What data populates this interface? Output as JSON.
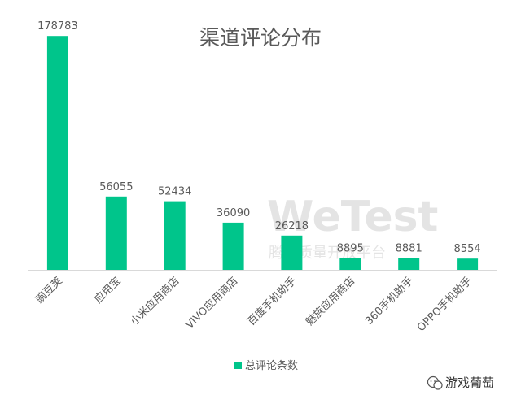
{
  "chart_data": {
    "type": "bar",
    "title": "渠道评论分布",
    "categories": [
      "豌豆荚",
      "应用宝",
      "小米应用商店",
      "VIVO应用商店",
      "百度手机助手",
      "魅族应用商店",
      "360手机助手",
      "OPPO手机助手"
    ],
    "series": [
      {
        "name": "总评论条数",
        "values": [
          178783,
          56055,
          52434,
          36090,
          26218,
          8895,
          8881,
          8554
        ]
      }
    ],
    "xlabel": "",
    "ylabel": "",
    "ylim": [
      0,
      200000
    ],
    "grid": false,
    "legend_position": "bottom",
    "colors": {
      "bar": "#00c58b",
      "axis": "#d9d9d9",
      "text": "#595959"
    }
  },
  "watermark": {
    "primary": "WeTest",
    "secondary": "腾讯质量开放平台"
  },
  "branding": {
    "account_name": "游戏葡萄"
  }
}
